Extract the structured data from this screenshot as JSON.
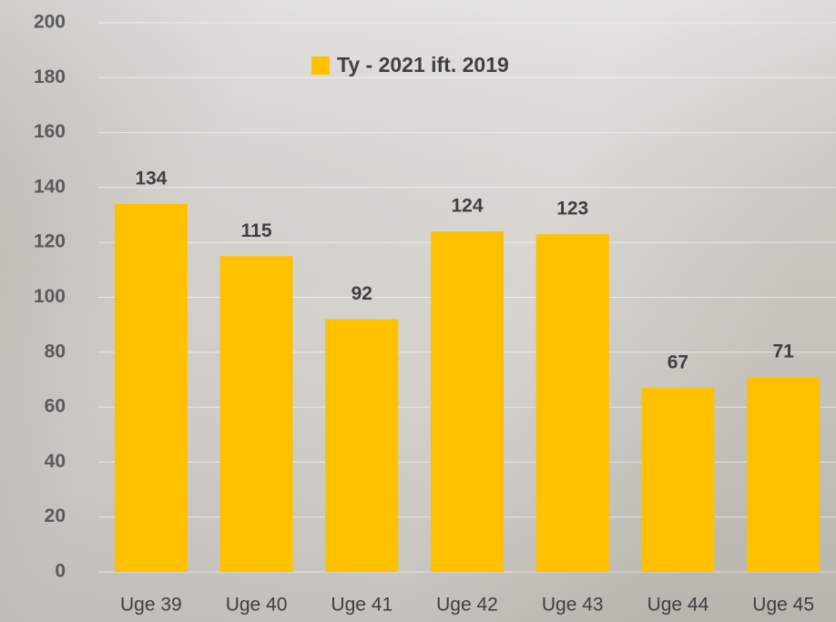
{
  "chart_data": {
    "type": "bar",
    "categories": [
      "Uge 39",
      "Uge 40",
      "Uge 41",
      "Uge 42",
      "Uge 43",
      "Uge 44",
      "Uge 45"
    ],
    "series": [
      {
        "name": "Ty - 2021 ift. 2019",
        "color": "#ffc000",
        "values": [
          134,
          115,
          92,
          124,
          123,
          67,
          71
        ]
      }
    ],
    "ylim": [
      0,
      200
    ],
    "yticks": [
      0,
      20,
      40,
      60,
      80,
      100,
      120,
      140,
      160,
      180,
      200
    ],
    "grid": true,
    "data_labels": true
  }
}
